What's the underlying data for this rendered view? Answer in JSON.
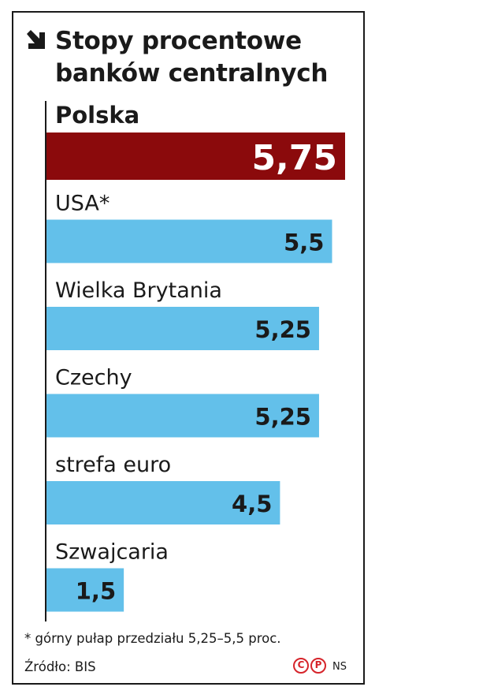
{
  "header": {
    "title_line1": "Stopy procentowe",
    "title_line2": "banków centralnych",
    "arrow_icon": "arrow-down-right-icon"
  },
  "chart_data": {
    "type": "bar",
    "orientation": "horizontal",
    "title": "Stopy procentowe banków centralnych",
    "categories": [
      "Polska",
      "USA*",
      "Wielka Brytania",
      "Czechy",
      "strefa euro",
      "Szwajcaria"
    ],
    "values": [
      5.75,
      5.5,
      5.25,
      5.25,
      4.5,
      1.5
    ],
    "value_labels": [
      "5,75",
      "5,5",
      "5,25",
      "5,25",
      "4,5",
      "1,5"
    ],
    "highlight_index": 0,
    "xlim": [
      0,
      5.75
    ],
    "xlabel": "",
    "ylabel": "",
    "grid": false,
    "legend": "none",
    "colors": {
      "highlight": "#8b0a0c",
      "bar": "#63c0ea",
      "highlight_text": "#8b0a0c"
    }
  },
  "footer": {
    "footnote": "* górny pułap przedziału 5,25–5,5 proc.",
    "source": "Źródło: BIS",
    "credit_icons": [
      "copyright-c-icon",
      "copyright-p-icon"
    ],
    "credit_icon_letters": [
      "C",
      "P"
    ],
    "author": "NS",
    "accent_color": "#d6242b"
  }
}
